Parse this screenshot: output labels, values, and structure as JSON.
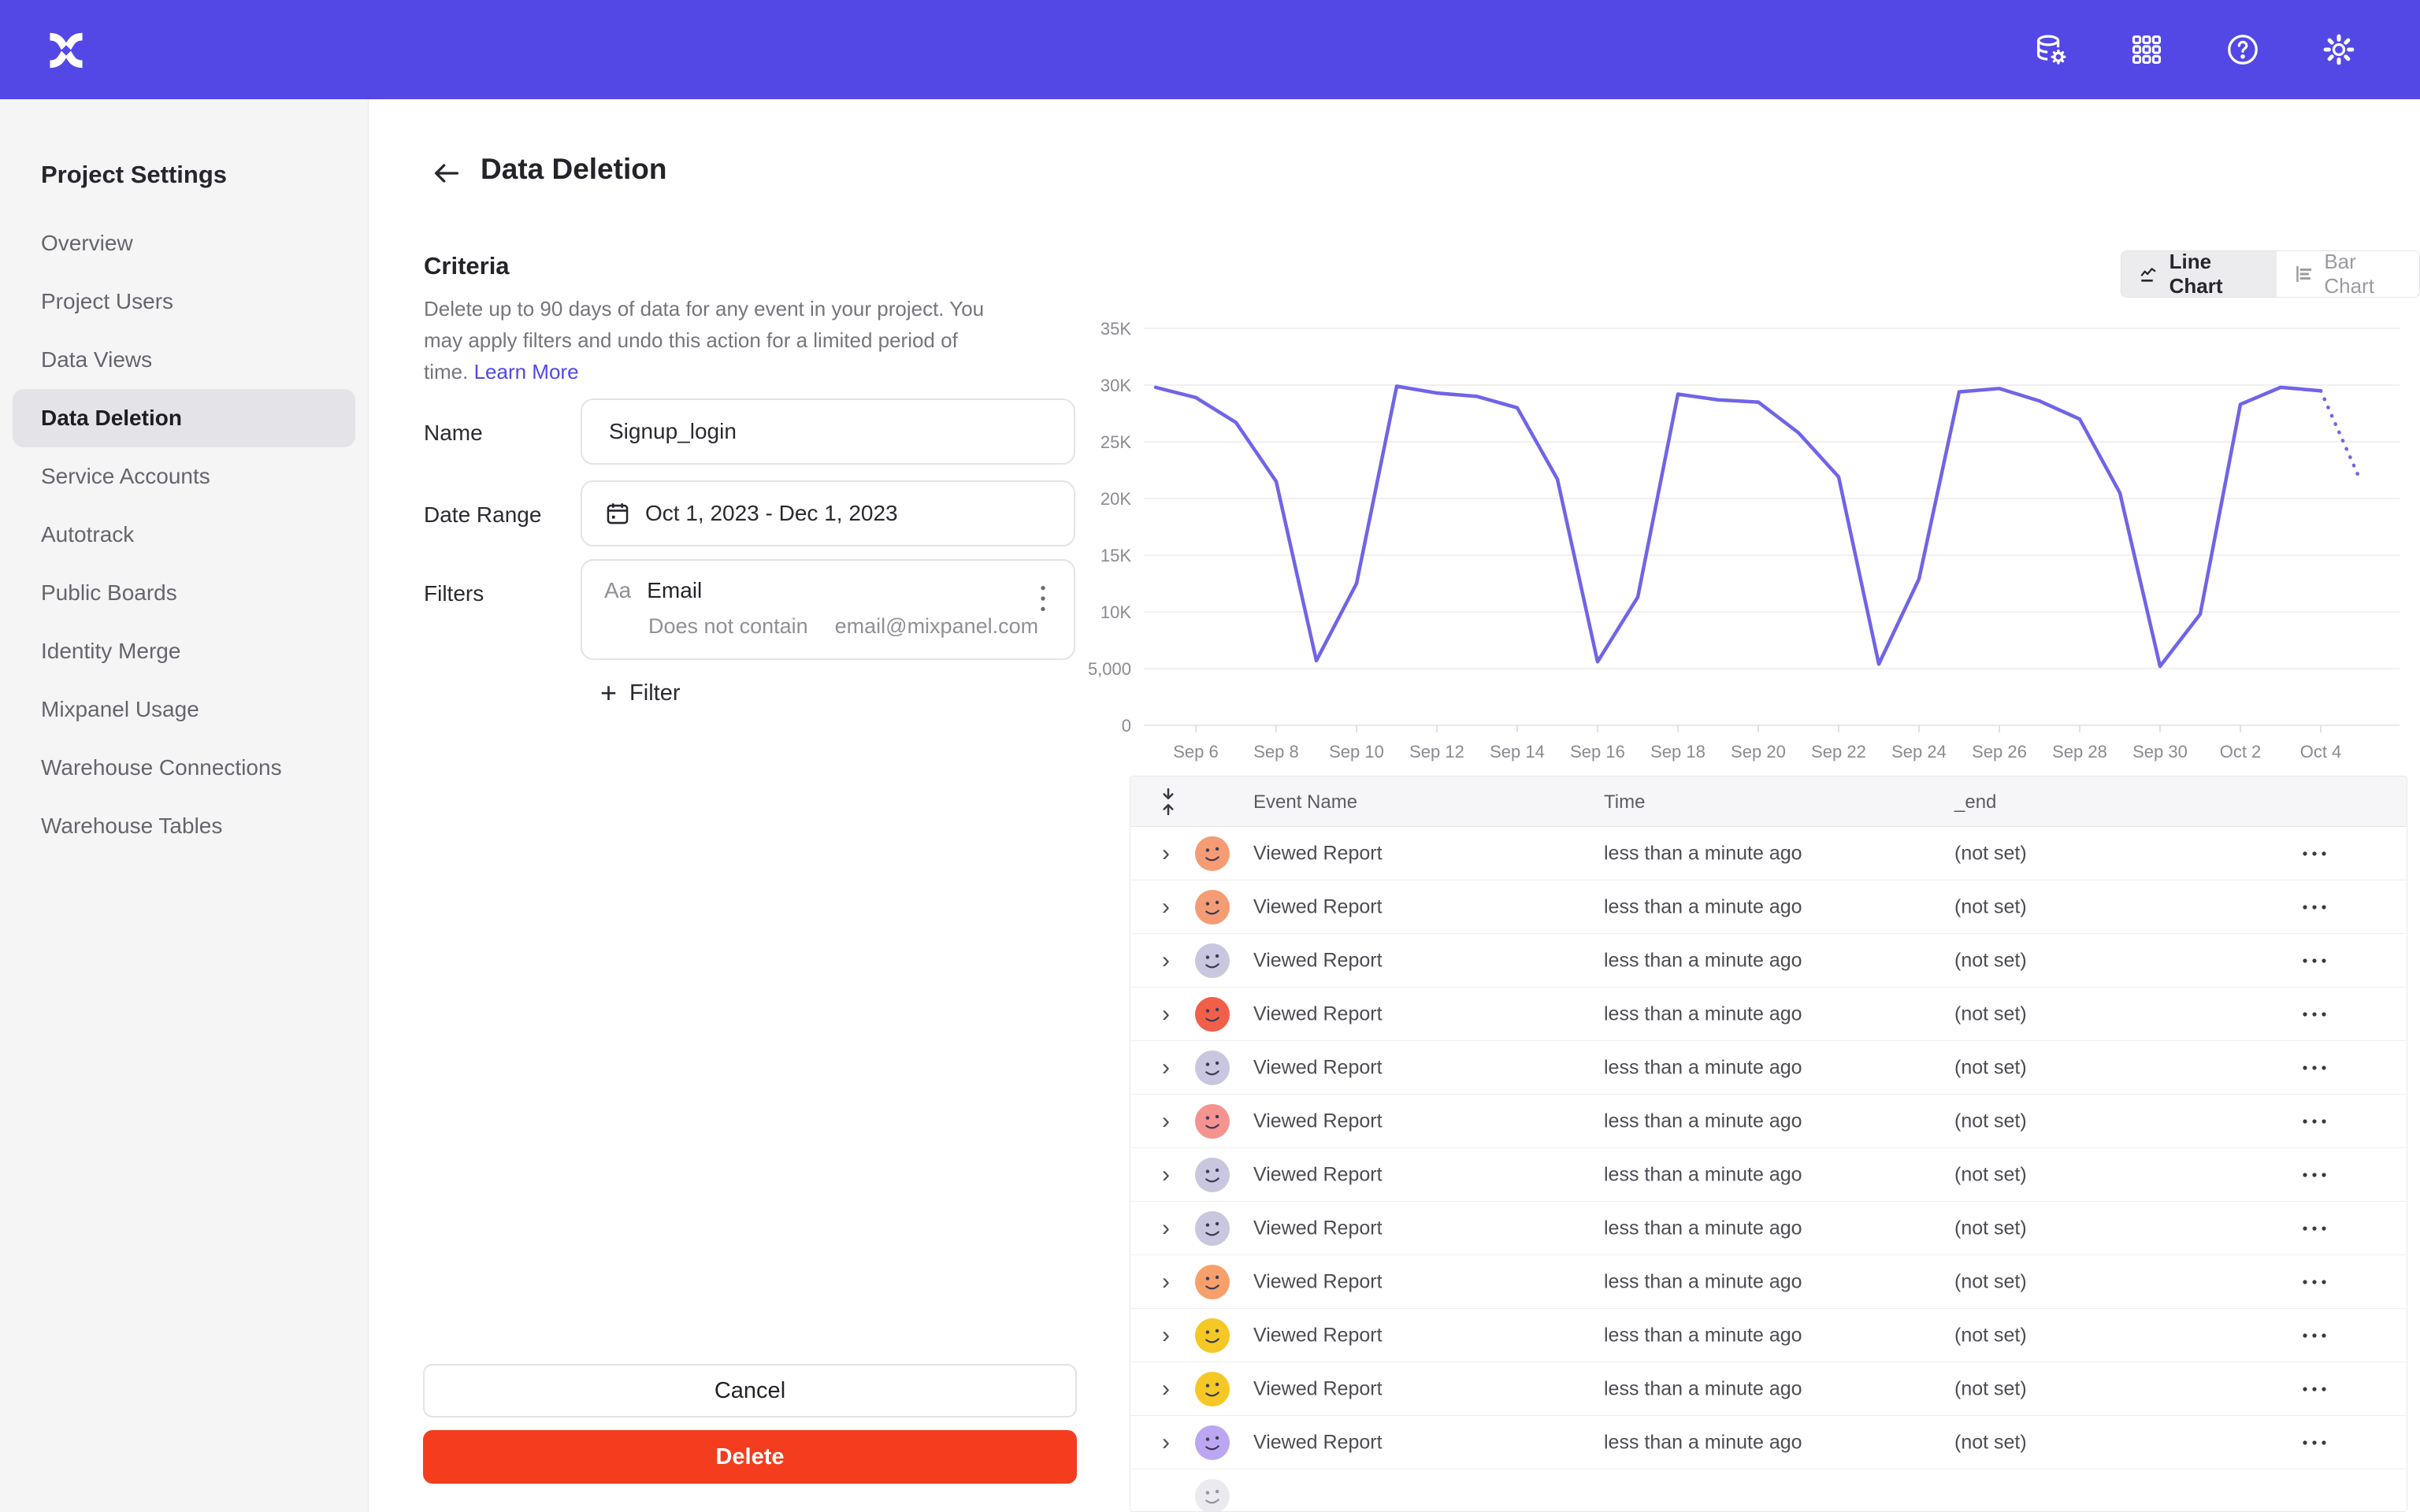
{
  "header": {
    "icons": [
      "data-settings-icon",
      "apps-grid-icon",
      "help-icon",
      "settings-gear-icon"
    ]
  },
  "sidebar": {
    "title": "Project Settings",
    "items": [
      {
        "label": "Overview",
        "selected": false
      },
      {
        "label": "Project Users",
        "selected": false
      },
      {
        "label": "Data Views",
        "selected": false
      },
      {
        "label": "Data Deletion",
        "selected": true
      },
      {
        "label": "Service Accounts",
        "selected": false
      },
      {
        "label": "Autotrack",
        "selected": false
      },
      {
        "label": "Public Boards",
        "selected": false
      },
      {
        "label": "Identity Merge",
        "selected": false
      },
      {
        "label": "Mixpanel Usage",
        "selected": false
      },
      {
        "label": "Warehouse Connections",
        "selected": false
      },
      {
        "label": "Warehouse Tables",
        "selected": false
      }
    ]
  },
  "page": {
    "title": "Data Deletion"
  },
  "criteria": {
    "heading": "Criteria",
    "description": "Delete up to 90 days of data for any event in your project. You may apply filters and undo this action for a limited period of time. ",
    "learn_more": "Learn More"
  },
  "form": {
    "name_label": "Name",
    "name_value": "Signup_login",
    "date_label": "Date Range",
    "date_value": "Oct 1, 2023 - Dec 1, 2023",
    "filters_label": "Filters",
    "filter": {
      "type_icon": "Aa",
      "field": "Email",
      "operator": "Does not contain",
      "value": "email@mixpanel.com"
    },
    "add_filter_label": "Filter"
  },
  "actions": {
    "cancel": "Cancel",
    "delete": "Delete"
  },
  "chart_toggle": {
    "line": "Line Chart",
    "bar": "Bar Chart"
  },
  "chart_data": {
    "type": "line",
    "title": "",
    "xlabel": "",
    "ylabel": "",
    "ylim": [
      0,
      35000
    ],
    "grid": true,
    "line_color": "#7064e8",
    "x": [
      "Sep 5",
      "Sep 6",
      "Sep 7",
      "Sep 8",
      "Sep 9",
      "Sep 10",
      "Sep 11",
      "Sep 12",
      "Sep 13",
      "Sep 14",
      "Sep 15",
      "Sep 16",
      "Sep 17",
      "Sep 18",
      "Sep 19",
      "Sep 20",
      "Sep 21",
      "Sep 22",
      "Sep 23",
      "Sep 24",
      "Sep 25",
      "Sep 26",
      "Sep 27",
      "Sep 28",
      "Sep 29",
      "Sep 30",
      "Oct 1",
      "Oct 2",
      "Oct 3",
      "Oct 4",
      "Oct 5"
    ],
    "values": [
      29800,
      28900,
      26700,
      21500,
      5700,
      12500,
      29900,
      29300,
      29000,
      28000,
      21700,
      5600,
      11300,
      29200,
      28700,
      28500,
      25800,
      21900,
      5400,
      12900,
      29400,
      29700,
      28600,
      27000,
      20500,
      5200,
      9800,
      28300,
      29800,
      29500,
      21500
    ],
    "dashed_from_index": 29,
    "x_tick_labels": [
      "Sep 6",
      "Sep 8",
      "Sep 10",
      "Sep 12",
      "Sep 14",
      "Sep 16",
      "Sep 18",
      "Sep 20",
      "Sep 22",
      "Sep 24",
      "Sep 26",
      "Sep 28",
      "Sep 30",
      "Oct 2",
      "Oct 4"
    ],
    "y_ticks": [
      {
        "value": 35000,
        "label": "35K"
      },
      {
        "value": 30000,
        "label": "30K"
      },
      {
        "value": 25000,
        "label": "25K"
      },
      {
        "value": 20000,
        "label": "20K"
      },
      {
        "value": 15000,
        "label": "15K"
      },
      {
        "value": 10000,
        "label": "10K"
      },
      {
        "value": 5000,
        "label": "5,000"
      },
      {
        "value": 0,
        "label": "0"
      }
    ]
  },
  "table": {
    "columns": [
      "Event Name",
      "Time",
      "_end"
    ],
    "rows": [
      {
        "event": "Viewed Report",
        "time": "less than a minute ago",
        "end": "(not set)",
        "avatar": "#f59c74",
        "partial": false
      },
      {
        "event": "Viewed Report",
        "time": "less than a minute ago",
        "end": "(not set)",
        "avatar": "#f59c74",
        "partial": false
      },
      {
        "event": "Viewed Report",
        "time": "less than a minute ago",
        "end": "(not set)",
        "avatar": "#c8c7df",
        "partial": false
      },
      {
        "event": "Viewed Report",
        "time": "less than a minute ago",
        "end": "(not set)",
        "avatar": "#f15f4a",
        "partial": false
      },
      {
        "event": "Viewed Report",
        "time": "less than a minute ago",
        "end": "(not set)",
        "avatar": "#c8c7df",
        "partial": false
      },
      {
        "event": "Viewed Report",
        "time": "less than a minute ago",
        "end": "(not set)",
        "avatar": "#f59390",
        "partial": false
      },
      {
        "event": "Viewed Report",
        "time": "less than a minute ago",
        "end": "(not set)",
        "avatar": "#c8c7df",
        "partial": false
      },
      {
        "event": "Viewed Report",
        "time": "less than a minute ago",
        "end": "(not set)",
        "avatar": "#c8c7df",
        "partial": false
      },
      {
        "event": "Viewed Report",
        "time": "less than a minute ago",
        "end": "(not set)",
        "avatar": "#f7a06c",
        "partial": false
      },
      {
        "event": "Viewed Report",
        "time": "less than a minute ago",
        "end": "(not set)",
        "avatar": "#f5c825",
        "partial": false
      },
      {
        "event": "Viewed Report",
        "time": "less than a minute ago",
        "end": "(not set)",
        "avatar": "#f5c825",
        "partial": false
      },
      {
        "event": "Viewed Report",
        "time": "less than a minute ago",
        "end": "(not set)",
        "avatar": "#bba7f1",
        "partial": false
      },
      {
        "event": "",
        "time": "",
        "end": "",
        "avatar": "#d9d9e2",
        "partial": true
      }
    ]
  }
}
